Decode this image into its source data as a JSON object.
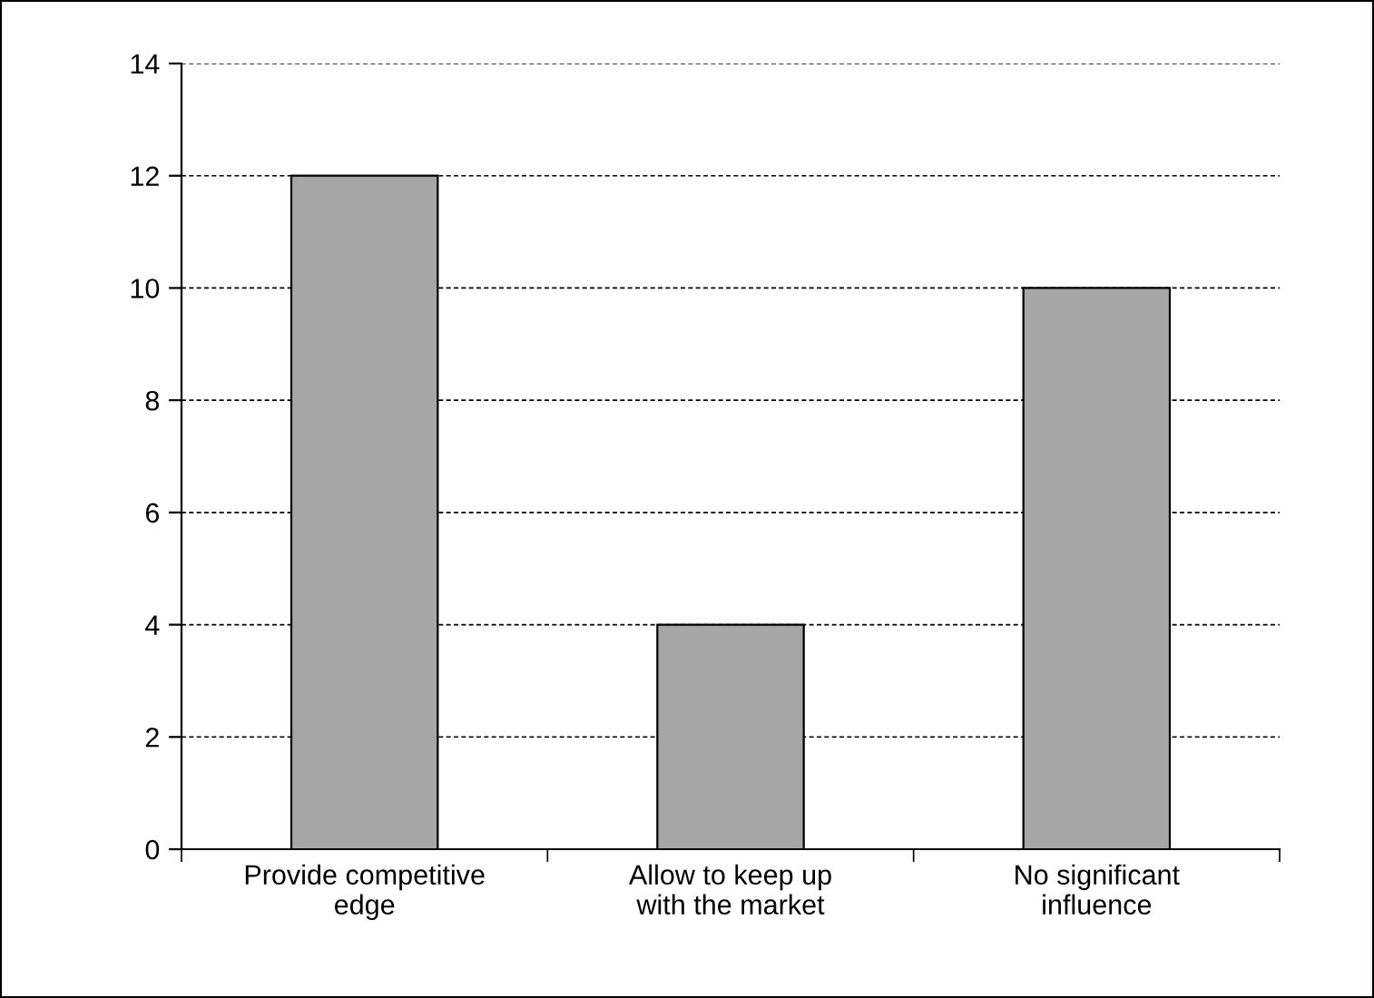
{
  "chart_data": {
    "type": "bar",
    "categories": [
      "Provide competitive\nedge",
      "Allow to keep up\nwith the market",
      "No significant\ninfluence"
    ],
    "values": [
      12,
      4,
      10
    ],
    "color": "#a6a6a6",
    "ylim": [
      0,
      14
    ],
    "yticks": [
      0,
      2,
      4,
      6,
      8,
      10,
      12,
      14
    ],
    "grid": "y",
    "legend": false
  }
}
